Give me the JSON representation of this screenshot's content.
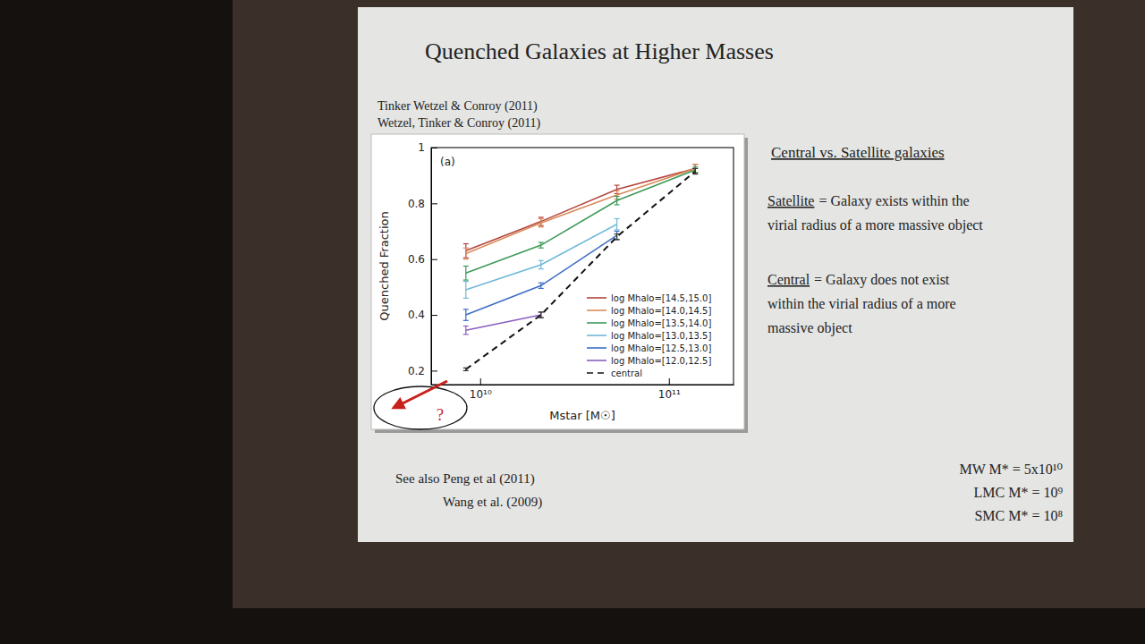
{
  "slide": {
    "title": "Quenched Galaxies at Higher Masses",
    "references": [
      "Tinker Wetzel & Conroy (2011)",
      "Wetzel, Tinker & Conroy (2011)"
    ],
    "heading": "Central vs. Satellite galaxies",
    "definitions": [
      {
        "term": "Satellite",
        "lines": [
          "= Galaxy exists within the",
          "virial radius of a more massive object"
        ]
      },
      {
        "term": "Central",
        "lines": [
          "= Galaxy does not exist",
          "within the virial radius of a more",
          "massive object"
        ]
      }
    ],
    "see_also": [
      "See also Peng et al (2011)",
      "Wang et al. (2009)"
    ],
    "masses": [
      "MW M* = 5x10¹⁰",
      "LMC M* = 10⁹",
      "SMC M* = 10⁸"
    ]
  },
  "chart_data": {
    "type": "line",
    "panel_label": "(a)",
    "x_label": "Mstar [M☉]",
    "y_label": "Quenched Fraction",
    "log": "x",
    "x": [
      8400000000.0,
      21000000000.0,
      53000000000.0,
      138000000000.0
    ],
    "xlim": [
      5500000000.0,
      220000000000.0
    ],
    "xticks": [
      {
        "value": 10000000000.0,
        "label": "10¹⁰"
      },
      {
        "value": 100000000000.0,
        "label": "10¹¹"
      }
    ],
    "ylim": [
      0.15,
      1
    ],
    "yticks": [
      0.2,
      0.4,
      0.6,
      0.8,
      1
    ],
    "legend": "lower right",
    "annotations": [
      "?"
    ],
    "series": [
      {
        "name": "log Mhalo=[14.5,15.0]",
        "color": "#b5453f",
        "values": [
          0.63,
          0.735,
          0.85,
          0.925
        ],
        "errors": [
          0.025,
          0.015,
          0.015,
          0.015
        ]
      },
      {
        "name": "log Mhalo=[14.0,14.5]",
        "color": "#d98b5a",
        "values": [
          0.62,
          0.73,
          0.83,
          0.925
        ],
        "errors": [
          0.02,
          0.015,
          0.015,
          0.015
        ]
      },
      {
        "name": "log Mhalo=[13.5,14.0]",
        "color": "#3f9a5a",
        "values": [
          0.55,
          0.65,
          0.81,
          0.92
        ],
        "errors": [
          0.025,
          0.01,
          0.015,
          0.01
        ]
      },
      {
        "name": "log Mhalo=[13.0,13.5]",
        "color": "#6fb8d8",
        "values": [
          0.49,
          0.58,
          0.725,
          null
        ],
        "errors": [
          0.03,
          0.015,
          0.02,
          null
        ]
      },
      {
        "name": "log Mhalo=[12.5,13.0]",
        "color": "#3d6fc4",
        "values": [
          0.4,
          0.505,
          0.685,
          null
        ],
        "errors": [
          0.02,
          0.01,
          0.015,
          null
        ]
      },
      {
        "name": "log Mhalo=[12.0,12.5]",
        "color": "#8a5fc0",
        "values": [
          0.345,
          0.4,
          null,
          null
        ],
        "errors": [
          0.015,
          0.01,
          null,
          null
        ]
      },
      {
        "name": "central",
        "color": "#111111",
        "line_style": "dashed",
        "values": [
          0.205,
          0.4,
          0.68,
          0.915
        ],
        "errors": [
          0.005,
          0.01,
          0.01,
          0.01
        ]
      }
    ]
  }
}
